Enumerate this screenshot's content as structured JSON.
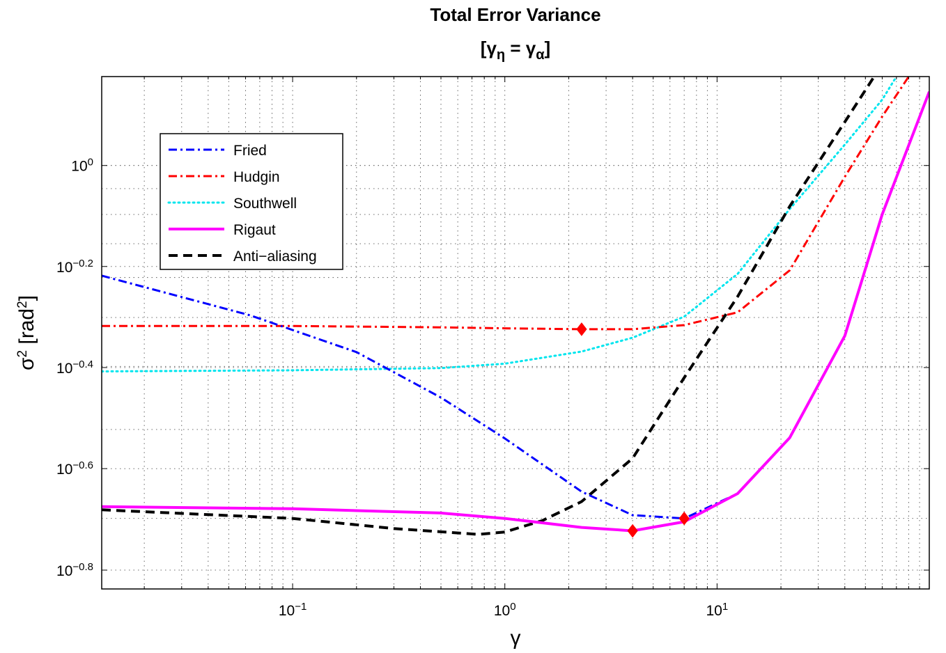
{
  "chart_data": {
    "type": "line",
    "title": "Total Error Variance",
    "subtitle": {
      "open": "[",
      "gamma": "γ",
      "sub1": "η",
      "eq": " = ",
      "sub2": "α",
      "close": "]"
    },
    "xlabel": "γ",
    "ylabel": {
      "sigma": "σ",
      "sup": "2",
      "unit_open": " [rad",
      "unit_close": "]"
    },
    "x_scale": "log",
    "y_scale": "log",
    "xlim": [
      0.0126,
      100
    ],
    "ylim": [
      0.145,
      1.5
    ],
    "grid": true,
    "legend_position": "top-left",
    "x_ticks": [
      {
        "base": "10",
        "exp": "−1",
        "value": 0.1
      },
      {
        "base": "10",
        "exp": "0",
        "value": 1
      },
      {
        "base": "10",
        "exp": "1",
        "value": 10
      }
    ],
    "y_ticks": [
      {
        "base": "10",
        "exp": "0",
        "value": 1.0
      },
      {
        "base": "10",
        "exp": "−0.2",
        "value": 0.631
      },
      {
        "base": "10",
        "exp": "−0.4",
        "value": 0.398
      },
      {
        "base": "10",
        "exp": "−0.6",
        "value": 0.251
      },
      {
        "base": "10",
        "exp": "−0.8",
        "value": 0.158
      }
    ],
    "series": [
      {
        "name": "Fried",
        "color": "#0000ff",
        "style": "dashdot",
        "x": [
          0.0126,
          0.063,
          0.2,
          0.5,
          1.0,
          2.3,
          4.0,
          7.0,
          12.5,
          22,
          40,
          60,
          100
        ],
        "y": [
          0.605,
          0.505,
          0.427,
          0.347,
          0.288,
          0.226,
          0.203,
          0.2,
          0.224,
          0.289,
          0.46,
          0.8,
          1.4
        ],
        "optimum": {
          "x": 7.0,
          "y": 0.2
        }
      },
      {
        "name": "Hudgin",
        "color": "#ff0000",
        "style": "dashdot",
        "x": [
          0.0126,
          0.1,
          0.5,
          1.0,
          2.3,
          4.0,
          7.0,
          12.5,
          22,
          40,
          60,
          80
        ],
        "y": [
          0.481,
          0.481,
          0.478,
          0.476,
          0.474,
          0.474,
          0.483,
          0.512,
          0.62,
          0.95,
          1.25,
          1.5
        ],
        "optimum": {
          "x": 2.3,
          "y": 0.474
        }
      },
      {
        "name": "Southwell",
        "color": "#00e5ee",
        "style": "dotted",
        "x": [
          0.0126,
          0.1,
          0.5,
          1.0,
          2.3,
          4.0,
          7.0,
          12.5,
          22,
          40,
          60,
          70
        ],
        "y": [
          0.391,
          0.393,
          0.397,
          0.405,
          0.428,
          0.456,
          0.502,
          0.61,
          0.82,
          1.1,
          1.35,
          1.5
        ]
      },
      {
        "name": "Rigaut",
        "color": "#ff00ff",
        "style": "solid",
        "x": [
          0.0126,
          0.1,
          0.5,
          1.0,
          2.3,
          4.0,
          7.0,
          12.5,
          22,
          40,
          60,
          100
        ],
        "y": [
          0.211,
          0.209,
          0.205,
          0.2,
          0.192,
          0.189,
          0.197,
          0.224,
          0.289,
          0.46,
          0.8,
          1.4
        ],
        "optimum": {
          "x": 4.0,
          "y": 0.189
        }
      },
      {
        "name": "Anti−aliasing",
        "color": "#000000",
        "style": "dashed",
        "x": [
          0.0126,
          0.1,
          0.3,
          0.75,
          1.0,
          1.5,
          2.3,
          4.0,
          7.0,
          12.5,
          22,
          40,
          55
        ],
        "y": [
          0.208,
          0.2,
          0.191,
          0.186,
          0.188,
          0.198,
          0.216,
          0.263,
          0.38,
          0.55,
          0.83,
          1.22,
          1.5
        ]
      }
    ]
  }
}
